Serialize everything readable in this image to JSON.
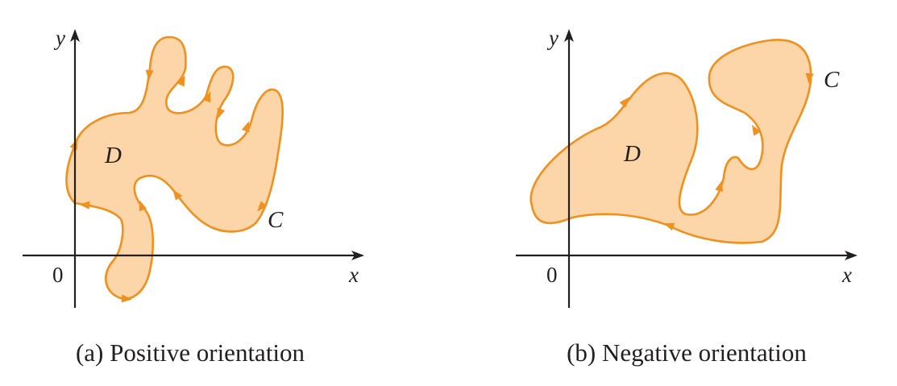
{
  "colors": {
    "region_fill": "#fcd5a8",
    "curve_stroke": "#f0901e",
    "axis": "#231f20",
    "text": "#231f20"
  },
  "diagrams": [
    {
      "id": "a",
      "caption": "(a) Positive orientation",
      "region_label": "D",
      "curve_label": "C",
      "x_axis_label": "x",
      "y_axis_label": "y",
      "origin_label": "0",
      "orientation": "counterclockwise"
    },
    {
      "id": "b",
      "caption": "(b) Negative orientation",
      "region_label": "D",
      "curve_label": "C",
      "x_axis_label": "x",
      "y_axis_label": "y",
      "origin_label": "0",
      "orientation": "clockwise"
    }
  ]
}
